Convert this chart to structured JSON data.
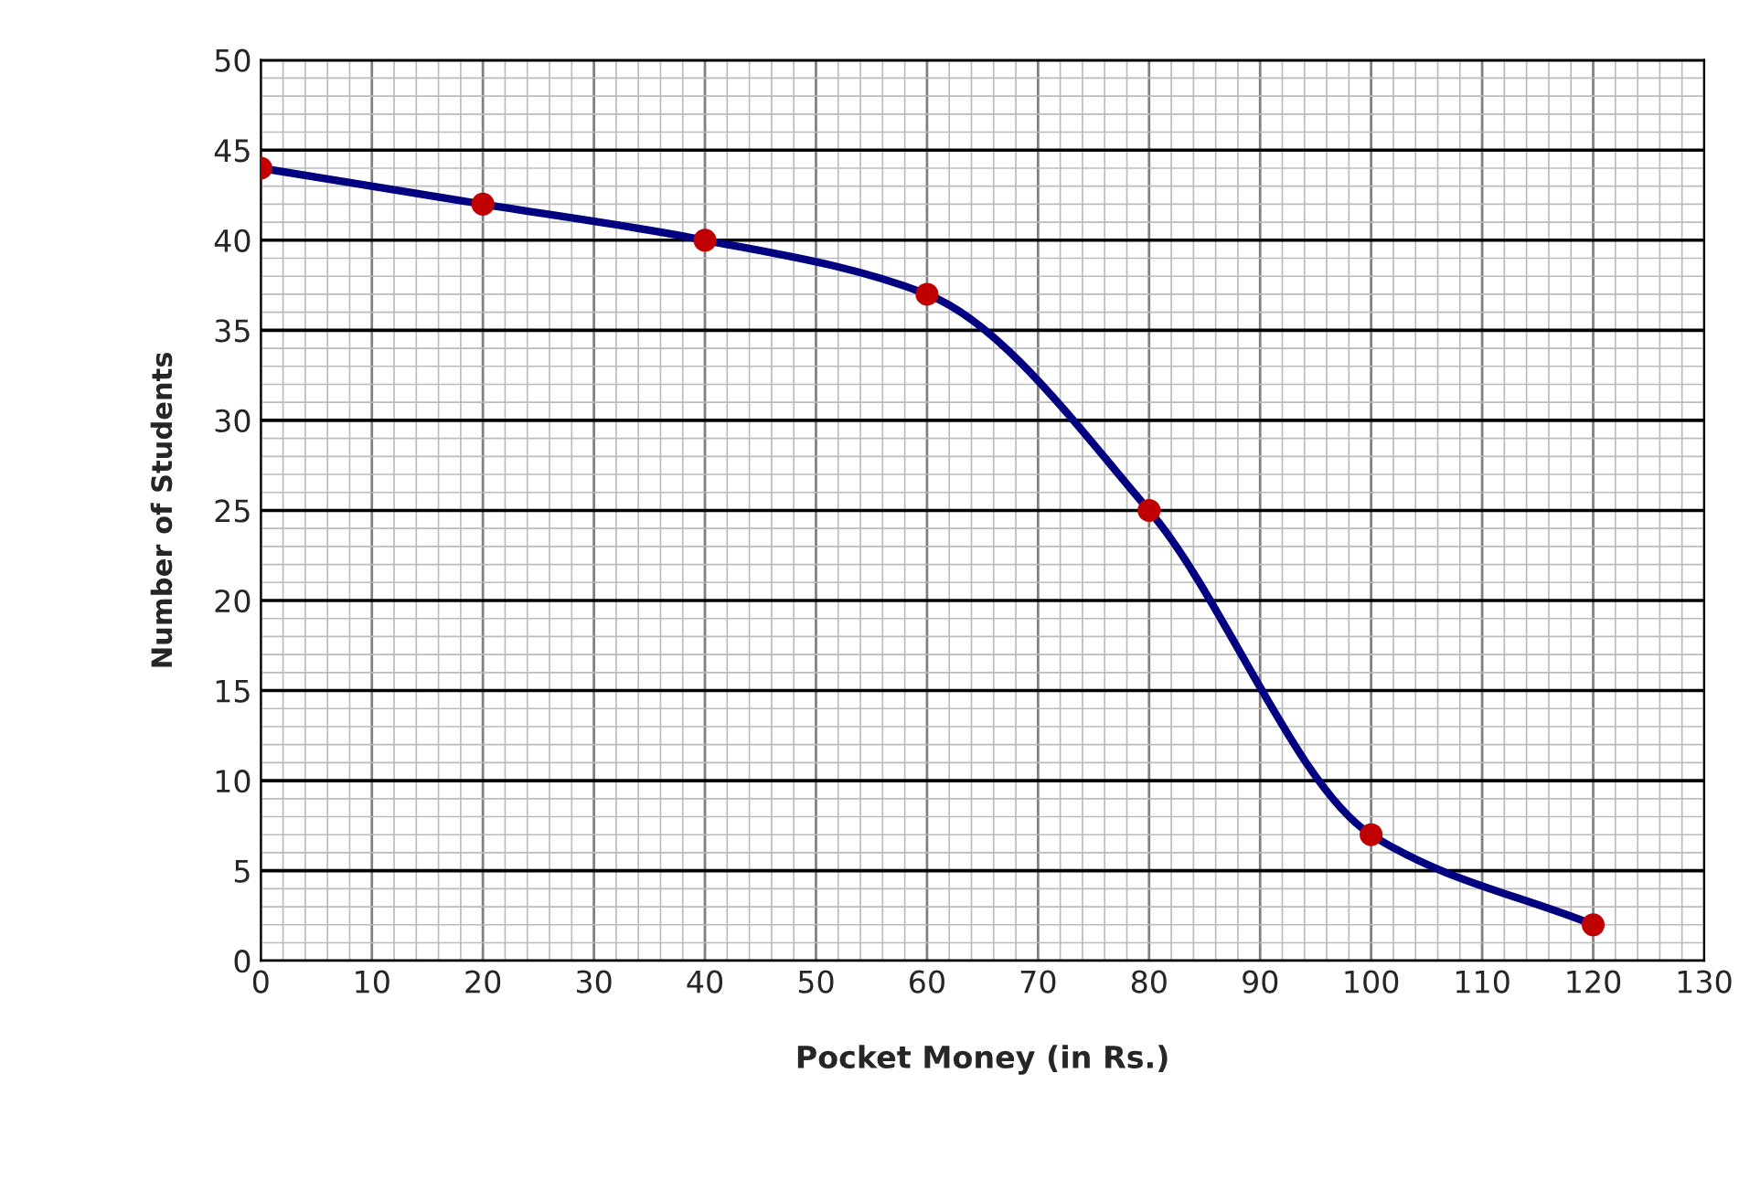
{
  "chart_data": {
    "type": "line",
    "xlabel": "Pocket Money (in Rs.)",
    "ylabel": "Number of Students",
    "x": [
      0,
      20,
      40,
      60,
      80,
      100,
      120
    ],
    "series": [
      {
        "color": "#000080",
        "values": [
          44,
          42,
          40,
          37,
          25,
          7,
          2
        ]
      },
      {
        "type": "scatter",
        "color": "#c00000",
        "marker": "circle",
        "values": [
          44,
          42,
          40,
          37,
          25,
          7,
          2
        ]
      }
    ],
    "line_style": "solid",
    "xlim": [
      0,
      130
    ],
    "xticks": [
      0,
      10,
      20,
      30,
      40,
      50,
      60,
      70,
      80,
      90,
      100,
      110,
      120,
      130
    ],
    "ylim": [
      0,
      50
    ],
    "yticks": [
      0,
      5,
      10,
      15,
      20,
      25,
      30,
      35,
      40,
      45,
      50
    ],
    "grid": true
  }
}
